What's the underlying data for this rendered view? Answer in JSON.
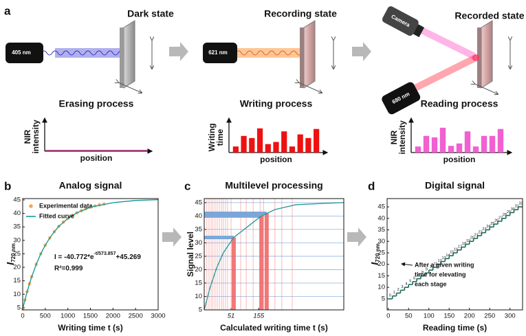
{
  "panel_labels": [
    "a",
    "b",
    "c",
    "d"
  ],
  "diagram": {
    "states": [
      {
        "title": "Dark state",
        "laser": "405 nm"
      },
      {
        "title": "Recording state",
        "laser": "621 nm"
      },
      {
        "title": "Recorded state",
        "laser": "680 nm",
        "camera": "Camera"
      }
    ]
  },
  "chart_data": [
    {
      "type": "line",
      "title": "Erasing process",
      "xlabel": "position",
      "ylabel": [
        "NIR",
        "intensity"
      ],
      "x": [
        0,
        1
      ],
      "values": [
        0.03,
        0.03
      ],
      "color": "#e040a0",
      "xlim": [
        0,
        1
      ],
      "ylim": [
        0,
        1
      ]
    },
    {
      "type": "bar",
      "title": "Writing process",
      "xlabel": "position",
      "ylabel": [
        "Writing",
        "time"
      ],
      "values": [
        0.2,
        0.55,
        0.48,
        0.8,
        0.28,
        0.35,
        0.7,
        0.2,
        0.6,
        0.48,
        0.78
      ],
      "color": "#ee1111",
      "ylim": [
        0,
        1
      ]
    },
    {
      "type": "bar",
      "title": "Reading process",
      "xlabel": "position",
      "ylabel": [
        "NIR",
        "intensity"
      ],
      "values": [
        0.2,
        0.55,
        0.5,
        0.82,
        0.22,
        0.3,
        0.7,
        0.2,
        0.55,
        0.55,
        0.78
      ],
      "color": "#f060d0",
      "ylim": [
        0,
        1
      ]
    },
    {
      "type": "scatter",
      "title": "Analog signal",
      "xlabel": "Writing time t (s)",
      "ylabel": "I",
      "ylabel_sub": "720 nm",
      "xlim": [
        0,
        3000
      ],
      "xticks": [
        0,
        500,
        1000,
        1500,
        2000,
        2500,
        3000
      ],
      "ylim": [
        4.2,
        45.5
      ],
      "yticks": [
        5,
        10,
        15,
        20,
        25,
        30,
        35,
        40,
        45
      ],
      "series": [
        {
          "name": "Experimental data",
          "color": "#f0a040",
          "style": "marker",
          "x": [
            0,
            50,
            100,
            150,
            200,
            300,
            400,
            500,
            600,
            700,
            800,
            900,
            1000,
            1100,
            1200,
            1300,
            1400,
            1500,
            1600,
            1700,
            1800
          ],
          "values": [
            4.5,
            7.9,
            11.0,
            13.9,
            16.5,
            21.1,
            25.0,
            28.2,
            30.9,
            33.2,
            35.2,
            36.8,
            38.1,
            39.3,
            40.2,
            41.0,
            41.7,
            42.3,
            42.8,
            43.2,
            43.5
          ]
        },
        {
          "name": "Fitted curve",
          "color": "#1a9a9a",
          "style": "line",
          "x": [
            0,
            50,
            100,
            150,
            200,
            300,
            400,
            500,
            600,
            700,
            800,
            1000,
            1200,
            1500,
            2000,
            2500,
            3000
          ],
          "values": [
            4.5,
            7.9,
            11.0,
            13.9,
            16.5,
            21.1,
            25.0,
            28.2,
            30.9,
            33.2,
            35.2,
            38.1,
            40.2,
            42.3,
            44.0,
            44.8,
            45.1
          ]
        }
      ],
      "annotation": [
        "I = -40.772*e",
        "-t/573.857",
        "+45.269"
      ],
      "annotation2": "R²=0.999"
    },
    {
      "type": "line",
      "title": "Multilevel processing",
      "xlabel": "Calculated writing time t (s)",
      "ylabel": "Signal level",
      "xlim": [
        -50,
        475
      ],
      "xticks": [
        51,
        155
      ],
      "ylim": [
        5,
        46.5
      ],
      "yticks": [
        5,
        10,
        15,
        20,
        25,
        30,
        35,
        40,
        45
      ],
      "grid": true,
      "x": [
        -50,
        -29,
        -3.5,
        22,
        61,
        113,
        165,
        216,
        294,
        397,
        475
      ],
      "values": [
        5,
        13,
        20.6,
        26.3,
        32,
        36,
        40,
        42.4,
        44.2,
        44.7,
        45
      ],
      "color": "#2a9a9a",
      "time_lines": [
        -40,
        -32,
        -24,
        -17,
        -9,
        -1,
        7,
        15,
        22,
        30,
        38,
        51,
        87,
        108,
        134,
        160,
        173,
        216,
        242,
        281
      ],
      "highlight_levels": [
        32,
        40,
        41
      ],
      "highlight_times": [
        61,
        165,
        185
      ]
    },
    {
      "type": "step",
      "title": "Digital signal",
      "xlabel": "Reading time (s)",
      "ylabel": "I",
      "ylabel_sub": "720 nm",
      "xlim": [
        -3,
        331
      ],
      "xticks": [
        0,
        50,
        100,
        150,
        200,
        250,
        300
      ],
      "ylim": [
        0.2,
        48.6
      ],
      "yticks": [
        5,
        10,
        15,
        20,
        25,
        30,
        35,
        40,
        45
      ],
      "color": "#1a6a5a",
      "x": [
        0,
        10,
        20,
        30,
        40,
        50,
        60,
        70,
        80,
        90,
        100,
        110,
        120,
        130,
        140,
        150,
        160,
        170,
        180,
        190,
        200,
        210,
        220,
        230,
        240,
        250,
        260,
        270,
        280,
        290,
        300,
        310,
        320
      ],
      "values": [
        5,
        6.25,
        7.5,
        8.75,
        10,
        11.25,
        12.5,
        13.75,
        15,
        16.25,
        17.5,
        18.75,
        20,
        21.25,
        22.5,
        23.75,
        25,
        26.25,
        27.5,
        28.75,
        30,
        31.25,
        32.5,
        33.75,
        35,
        36.25,
        37.5,
        38.75,
        40,
        41.25,
        42.5,
        43.75,
        45
      ],
      "stage_labels": [
        "0",
        "1",
        "2",
        "3",
        "4",
        "5",
        "6",
        "7",
        "8",
        "9",
        "10",
        "11",
        "12",
        "13",
        "14",
        "15",
        "16",
        "17",
        "18",
        "19",
        "20",
        "21",
        "22",
        "23",
        "24",
        "25",
        "26",
        "27",
        "28",
        "29",
        "30",
        "31",
        "32"
      ],
      "annotation": [
        "After a given writing",
        "time for elevating",
        "each stage"
      ]
    }
  ]
}
